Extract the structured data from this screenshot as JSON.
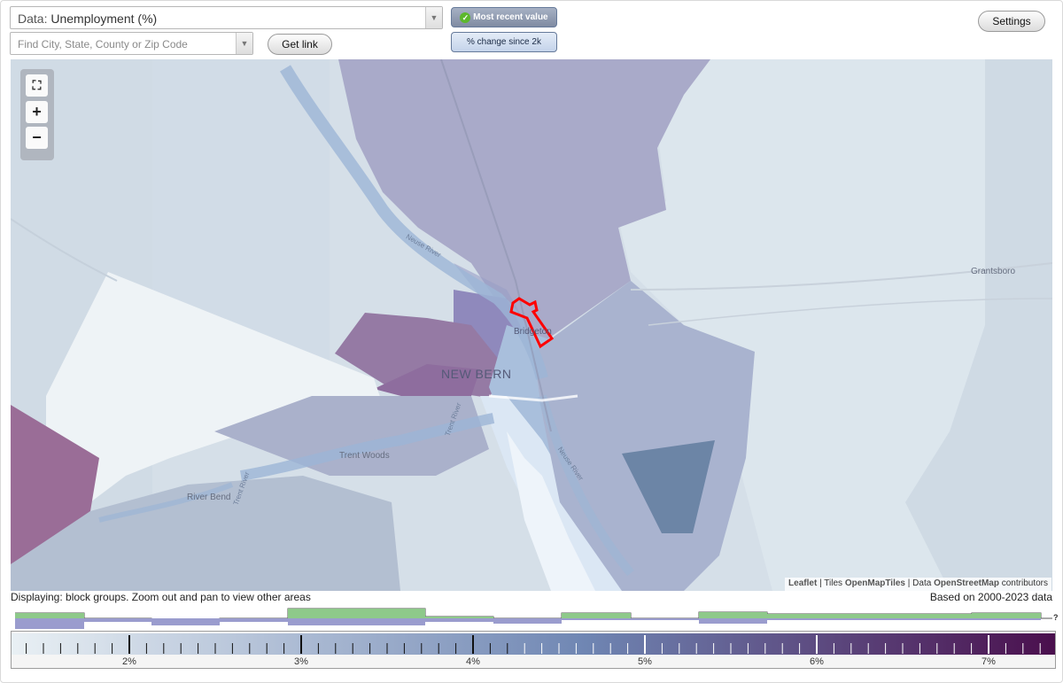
{
  "data_select": {
    "prefix": "Data:",
    "value": "Unemployment (%)"
  },
  "search": {
    "placeholder": "Find City, State, County or Zip Code"
  },
  "buttons": {
    "get_link": "Get link",
    "settings": "Settings"
  },
  "modes": {
    "most_recent": "Most recent value",
    "pct_change": "% change since 2k"
  },
  "map_labels": {
    "new_bern": "NEW BERN",
    "bridgeton": "Bridgeton",
    "grantsboro": "Grantsboro",
    "trent_woods": "Trent Woods",
    "river_bend": "River Bend",
    "neuse_river_upper": "Neuse River",
    "neuse_river_lower": "Neuse River",
    "trent_river": "Trent River",
    "trent_river_2": "Trent River"
  },
  "attribution": {
    "leaflet": "Leaflet",
    "sep1": "|",
    "tiles_label": "Tiles",
    "tiles": "OpenMapTiles",
    "sep2": "|",
    "data_label": "Data",
    "data": "OpenStreetMap",
    "contributors": "contributors"
  },
  "footer": {
    "displaying": "Displaying: block groups. Zoom out and pan to view other areas",
    "based_on": "Based on 2000-2023 data"
  },
  "histogram": {
    "question_mark": "?"
  },
  "legend": {
    "ticks": [
      "2%",
      "3%",
      "4%",
      "5%",
      "6%",
      "7%"
    ],
    "gradient_start": "#e9f0f4",
    "gradient_mid": "#6f86b3",
    "gradient_end": "#4a0f4d"
  },
  "zoom": {
    "fullscreen": "⛶",
    "plus": "+",
    "minus": "−"
  }
}
